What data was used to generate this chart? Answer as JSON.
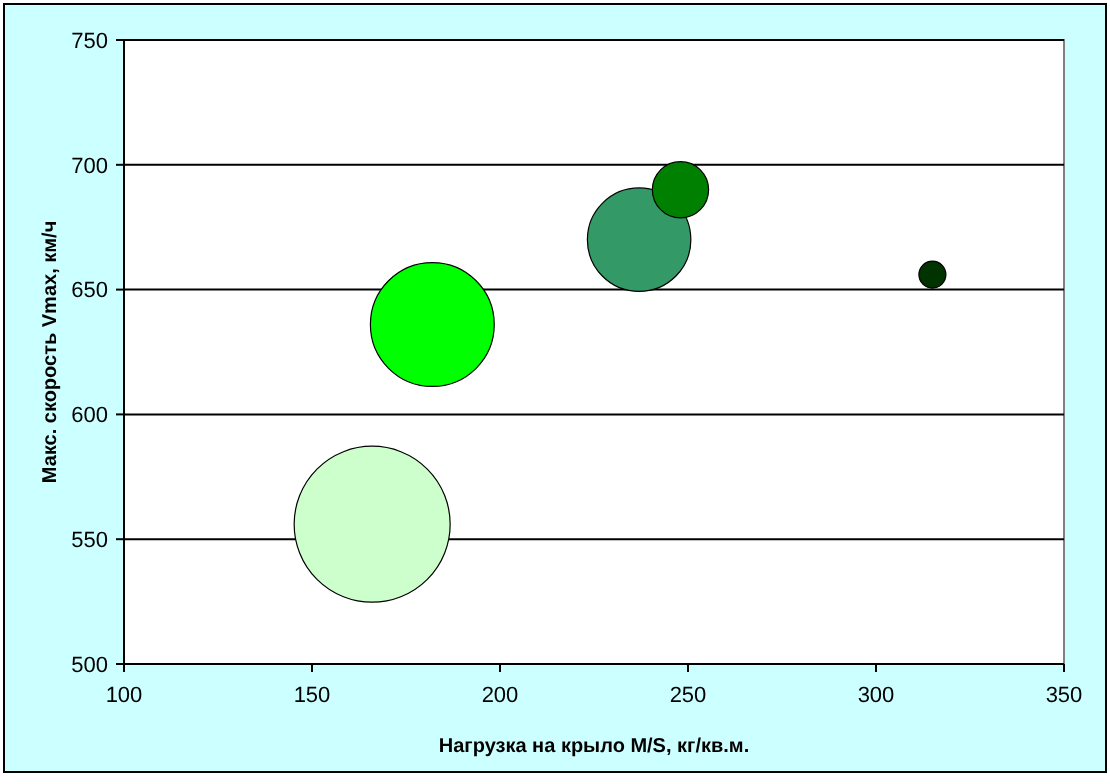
{
  "chart_data": {
    "type": "bubble",
    "xlabel": "Нагрузка на крыло M/S, кг/кв.м.",
    "ylabel": "Макс. скорость Vmax, км/ч",
    "x": [
      166,
      182,
      237,
      248,
      315
    ],
    "values": [
      556,
      636,
      670,
      690,
      656
    ],
    "sizes": [
      1,
      0.63,
      0.44,
      0.13,
      0.03
    ],
    "colors": [
      "#ccffcc",
      "#00ff00",
      "#339966",
      "#008000",
      "#003300"
    ],
    "xlim": [
      100,
      350
    ],
    "xticks": [
      100,
      150,
      200,
      250,
      300,
      350
    ],
    "ylim": [
      500,
      750
    ],
    "yticks": [
      500,
      550,
      600,
      650,
      700,
      750
    ],
    "grid": "y"
  }
}
